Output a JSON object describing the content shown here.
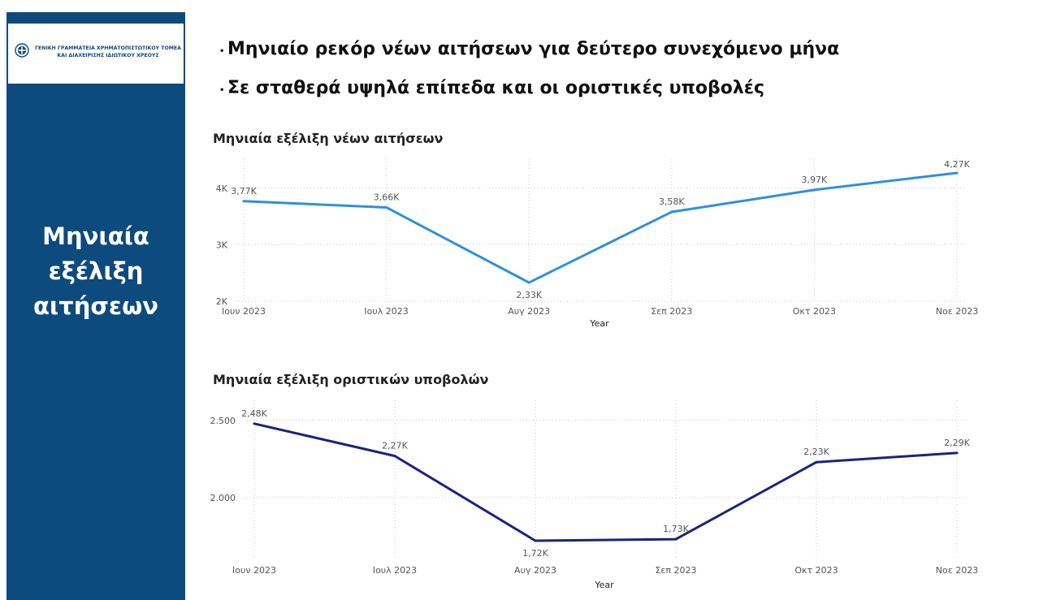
{
  "sidebar": {
    "logo_line1": "ΓΕΝΙΚΗ ΓΡΑΜΜΑΤΕΙΑ ΧΡΗΜΑΤΟΠΙΣΤΩΤΙΚΟΥ ΤΟΜΕΑ",
    "logo_line2": "ΚΑΙ ΔΙΑΧΕΙΡΙΣΗΣ ΙΔΙΩΤΙΚΟΥ ΧΡΕΟΥΣ",
    "title_line1": "Μηνιαία",
    "title_line2": "εξέλιξη",
    "title_line3": "αιτήσεων",
    "color": "#0d4a7e"
  },
  "bullets": [
    {
      "dot": "•",
      "text": "Μηνιαίο ρεκόρ νέων αιτήσεων για δεύτερο συνεχόμενο μήνα"
    },
    {
      "dot": "•",
      "text": "Σε σταθερά υψηλά επίπεδα και οι οριστικές υποβολές"
    }
  ],
  "chart_data": [
    {
      "type": "line",
      "title": "Μηνιαία εξέλιξη νέων αιτήσεων",
      "categories": [
        "Ιουν 2023",
        "Ιουλ 2023",
        "Αυγ 2023",
        "Σεπ 2023",
        "Οκτ 2023",
        "Νοε 2023"
      ],
      "values": [
        3770,
        3660,
        2330,
        3580,
        3970,
        4270
      ],
      "data_labels": [
        "3,77K",
        "3,66K",
        "2,33K",
        "3,58K",
        "3,97K",
        "4,27K"
      ],
      "xlabel": "Year",
      "ylabel": "",
      "ylim": [
        2000,
        4500
      ],
      "y_ticks": [
        2000,
        3000,
        4000
      ],
      "y_tick_labels": [
        "2K",
        "3K",
        "4K"
      ],
      "color": "#2f8fe0",
      "grid": true
    },
    {
      "type": "line",
      "title": "Μηνιαία εξέλιξη οριστικών υποβολών",
      "categories": [
        "Ιουν 2023",
        "Ιουλ 2023",
        "Αυγ 2023",
        "Σεπ 2023",
        "Οκτ 2023",
        "Νοε 2023"
      ],
      "values": [
        2480,
        2270,
        1720,
        1730,
        2230,
        2290
      ],
      "data_labels": [
        "2,48K",
        "2,27K",
        "1,72K",
        "1,73K",
        "2,23K",
        "2,29K"
      ],
      "xlabel": "Year",
      "ylabel": "",
      "ylim": [
        1720,
        2500
      ],
      "y_ticks": [
        2000,
        2500
      ],
      "y_tick_labels": [
        "2.000",
        "2.500"
      ],
      "color": "#1a237e",
      "grid": true
    }
  ]
}
